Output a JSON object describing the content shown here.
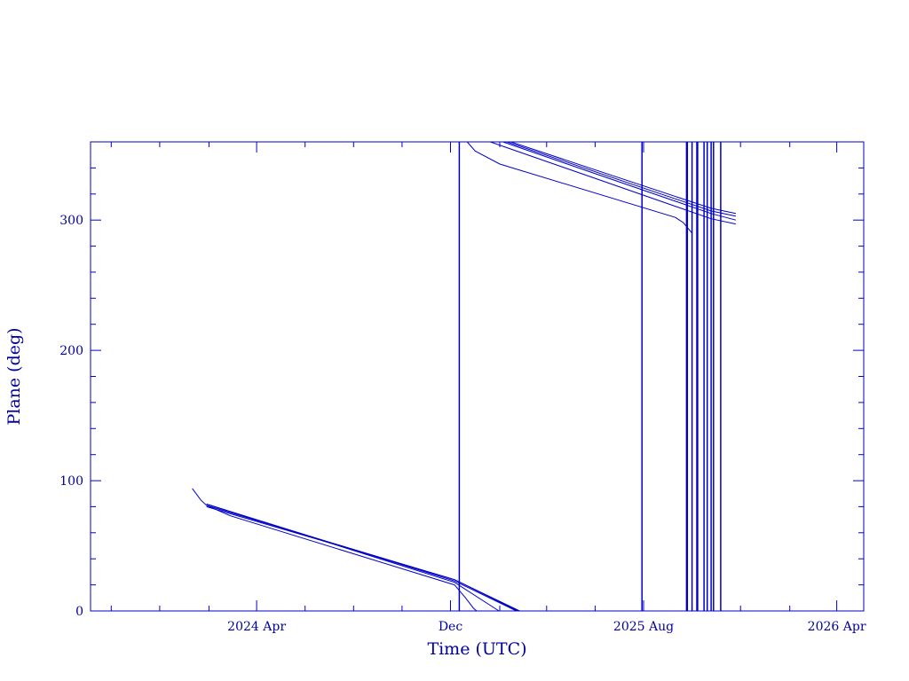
{
  "chart_data": {
    "type": "line",
    "title": "",
    "xlabel": "Time (UTC)",
    "ylabel": "Plane (deg)",
    "xlim": [
      "2023-09-05",
      "2026-05-05"
    ],
    "ylim": [
      0,
      360
    ],
    "x_ticks": [
      {
        "date": "2024-04-01",
        "label": "2024 Apr"
      },
      {
        "date": "2024-12-01",
        "label": "Dec"
      },
      {
        "date": "2025-08-01",
        "label": "2025 Aug"
      },
      {
        "date": "2026-04-01",
        "label": "2026 Apr"
      }
    ],
    "y_ticks": [
      0,
      100,
      200,
      300
    ],
    "grid": false,
    "legend": "none",
    "color": "#0000c8",
    "series": [
      {
        "points": [
          [
            "2024-01-11",
            94
          ],
          [
            "2024-01-22",
            85
          ],
          [
            "2024-01-29",
            81
          ],
          [
            "2024-02-28",
            73
          ],
          [
            "2024-12-06",
            20
          ],
          [
            "2024-12-20",
            10
          ],
          [
            "2024-12-30",
            2
          ],
          [
            "2025-01-03",
            0
          ]
        ]
      },
      {
        "points": [
          [
            "2024-01-29",
            82
          ],
          [
            "2024-12-06",
            22
          ],
          [
            "2025-01-31",
            0
          ]
        ]
      },
      {
        "points": [
          [
            "2024-01-29",
            82
          ],
          [
            "2024-12-06",
            23
          ],
          [
            "2025-02-22",
            0
          ]
        ]
      },
      {
        "points": [
          [
            "2024-01-29",
            81
          ],
          [
            "2024-12-06",
            24
          ],
          [
            "2025-02-24",
            0
          ]
        ]
      },
      {
        "points": [
          [
            "2024-01-29",
            80
          ],
          [
            "2024-12-06",
            24
          ],
          [
            "2025-02-26",
            0
          ]
        ]
      },
      {
        "points": [
          [
            "2024-12-22",
            360
          ],
          [
            "2025-01-01",
            353
          ],
          [
            "2025-02-01",
            343
          ],
          [
            "2025-09-10",
            302
          ],
          [
            "2025-09-20",
            298
          ],
          [
            "2025-10-01",
            290
          ]
        ]
      },
      {
        "points": [
          [
            "2025-01-20",
            360
          ],
          [
            "2025-10-25",
            301
          ],
          [
            "2025-11-25",
            297
          ]
        ]
      },
      {
        "points": [
          [
            "2025-02-05",
            360
          ],
          [
            "2025-10-25",
            305
          ],
          [
            "2025-11-25",
            300
          ]
        ]
      },
      {
        "points": [
          [
            "2025-02-10",
            360
          ],
          [
            "2025-10-25",
            307
          ],
          [
            "2025-11-25",
            303
          ]
        ]
      },
      {
        "points": [
          [
            "2025-02-15",
            360
          ],
          [
            "2025-10-25",
            309
          ],
          [
            "2025-11-25",
            305
          ]
        ]
      }
    ],
    "vertical_lines": [
      "2024-12-12",
      "2025-07-30",
      "2025-09-24",
      "2025-09-25",
      "2025-10-01",
      "2025-10-07",
      "2025-10-08",
      "2025-10-16",
      "2025-10-20",
      "2025-10-25",
      "2025-10-28",
      "2025-11-06"
    ]
  }
}
